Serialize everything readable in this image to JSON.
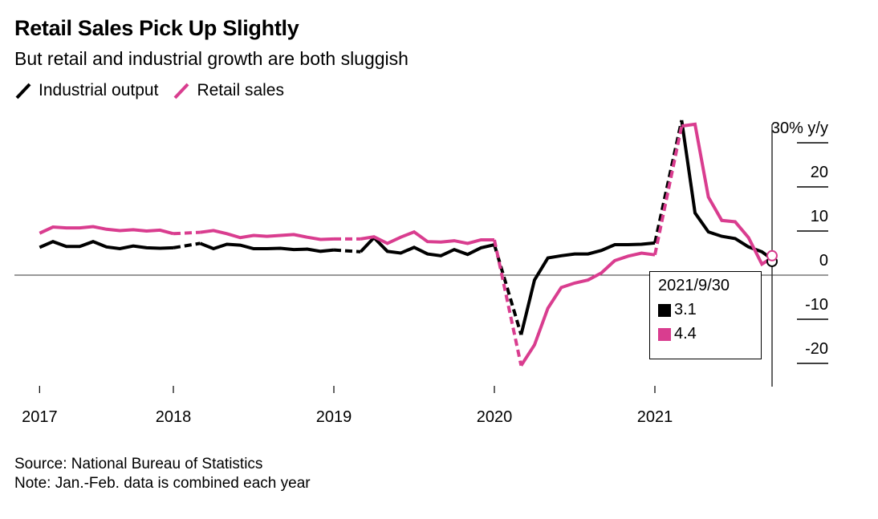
{
  "header": {
    "title": "Retail Sales Pick Up Slightly",
    "subtitle": "But retail and industrial growth are both sluggish"
  },
  "footer": {
    "source": "Source: National Bureau of Statistics",
    "note": "Note: Jan.-Feb. data is combined each year"
  },
  "tooltip": {
    "date": "2021/9/30",
    "rows": [
      {
        "series": "Industrial output",
        "value": "3.1",
        "color": "#000000"
      },
      {
        "series": "Retail sales",
        "value": "4.4",
        "color": "#D93D8F"
      }
    ]
  },
  "chart_data": {
    "type": "line",
    "title": "Retail Sales Pick Up Slightly",
    "subtitle": "But retail and industrial growth are both sluggish",
    "xlabel": "",
    "ylabel": "% y/y",
    "ylim": [
      -25,
      30
    ],
    "yticks": [
      30,
      20,
      10,
      0,
      -10,
      -20
    ],
    "ytick_labels": [
      "30% y/y",
      "20",
      "10",
      "0",
      "-10",
      "-20"
    ],
    "xticks": [
      "2017",
      "2018",
      "2019",
      "2020",
      "2021"
    ],
    "legend_position": "top-left",
    "grid": false,
    "note": "Jan. values absent; Dec→Jan.-Feb. transitions drawn dashed",
    "x": [
      "2017-02",
      "2017-03",
      "2017-04",
      "2017-05",
      "2017-06",
      "2017-07",
      "2017-08",
      "2017-09",
      "2017-10",
      "2017-11",
      "2017-12",
      "2018-02",
      "2018-03",
      "2018-04",
      "2018-05",
      "2018-06",
      "2018-07",
      "2018-08",
      "2018-09",
      "2018-10",
      "2018-11",
      "2018-12",
      "2019-02",
      "2019-03",
      "2019-04",
      "2019-05",
      "2019-06",
      "2019-07",
      "2019-08",
      "2019-09",
      "2019-10",
      "2019-11",
      "2019-12",
      "2020-02",
      "2020-03",
      "2020-04",
      "2020-05",
      "2020-06",
      "2020-07",
      "2020-08",
      "2020-09",
      "2020-10",
      "2020-11",
      "2020-12",
      "2021-02",
      "2021-03",
      "2021-04",
      "2021-05",
      "2021-06",
      "2021-07",
      "2021-08",
      "2021-09"
    ],
    "series": [
      {
        "name": "Industrial output",
        "color": "#000000",
        "values": [
          6.3,
          7.6,
          6.5,
          6.5,
          7.6,
          6.4,
          6.0,
          6.6,
          6.2,
          6.1,
          6.2,
          7.2,
          6.0,
          7.0,
          6.8,
          6.0,
          6.0,
          6.1,
          5.8,
          5.9,
          5.4,
          5.7,
          5.3,
          8.5,
          5.4,
          5.0,
          6.3,
          4.8,
          4.4,
          5.8,
          4.7,
          6.2,
          6.9,
          -13.5,
          -1.1,
          3.9,
          4.4,
          4.8,
          4.8,
          5.6,
          6.9,
          6.9,
          7.0,
          7.3,
          35.1,
          14.1,
          9.8,
          8.8,
          8.3,
          6.4,
          5.3,
          3.1
        ]
      },
      {
        "name": "Retail sales",
        "color": "#D93D8F",
        "values": [
          9.5,
          10.9,
          10.7,
          10.7,
          11.0,
          10.4,
          10.1,
          10.3,
          10.0,
          10.2,
          9.4,
          9.7,
          10.1,
          9.4,
          8.5,
          9.0,
          8.8,
          9.0,
          9.2,
          8.6,
          8.1,
          8.2,
          8.2,
          8.7,
          7.2,
          8.6,
          9.8,
          7.6,
          7.5,
          7.8,
          7.2,
          8.0,
          8.0,
          -20.5,
          -15.8,
          -7.5,
          -2.8,
          -1.8,
          -1.1,
          0.5,
          3.3,
          4.3,
          5.0,
          4.6,
          33.8,
          34.2,
          17.7,
          12.4,
          12.1,
          8.5,
          2.5,
          4.4
        ]
      }
    ]
  }
}
